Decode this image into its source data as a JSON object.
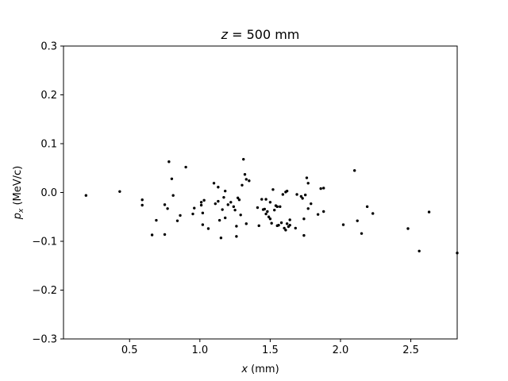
{
  "chart_data": {
    "type": "scatter",
    "title_var": "z",
    "title_rest": " = 500 mm",
    "xlabel_var": "x",
    "xlabel_rest": " (mm)",
    "ylabel_var": "p",
    "ylabel_sub": "x",
    "ylabel_rest": " (MeV/c)",
    "xlim": [
      0.03,
      2.83
    ],
    "ylim": [
      -0.3,
      0.3
    ],
    "xticks": [
      0.5,
      1.0,
      1.5,
      2.0,
      2.5
    ],
    "xtick_labels": [
      "0.5",
      "1.0",
      "1.5",
      "2.0",
      "2.5"
    ],
    "yticks": [
      -0.3,
      -0.2,
      -0.1,
      0.0,
      0.1,
      0.2,
      0.3
    ],
    "ytick_labels": [
      "−0.3",
      "−0.2",
      "−0.1",
      "0.0",
      "0.1",
      "0.2",
      "0.3"
    ],
    "grid": false,
    "marker_color": "#000000",
    "points": [
      [
        0.19,
        -0.006
      ],
      [
        0.43,
        0.002
      ],
      [
        0.59,
        -0.015
      ],
      [
        0.59,
        -0.026
      ],
      [
        0.66,
        -0.087
      ],
      [
        0.69,
        -0.057
      ],
      [
        0.75,
        -0.086
      ],
      [
        0.75,
        -0.025
      ],
      [
        0.77,
        -0.033
      ],
      [
        0.78,
        0.063
      ],
      [
        0.8,
        0.028
      ],
      [
        0.81,
        -0.006
      ],
      [
        0.84,
        -0.058
      ],
      [
        0.86,
        -0.047
      ],
      [
        0.9,
        0.052
      ],
      [
        0.95,
        -0.044
      ],
      [
        0.96,
        -0.032
      ],
      [
        1.01,
        -0.026
      ],
      [
        1.01,
        -0.02
      ],
      [
        1.02,
        -0.066
      ],
      [
        1.02,
        -0.042
      ],
      [
        1.03,
        -0.016
      ],
      [
        1.06,
        -0.074
      ],
      [
        1.1,
        0.019
      ],
      [
        1.11,
        -0.023
      ],
      [
        1.13,
        0.011
      ],
      [
        1.13,
        -0.018
      ],
      [
        1.14,
        -0.057
      ],
      [
        1.15,
        -0.093
      ],
      [
        1.16,
        -0.035
      ],
      [
        1.17,
        -0.01
      ],
      [
        1.18,
        0.003
      ],
      [
        1.18,
        -0.052
      ],
      [
        1.2,
        -0.025
      ],
      [
        1.22,
        -0.02
      ],
      [
        1.24,
        -0.029
      ],
      [
        1.25,
        -0.036
      ],
      [
        1.26,
        -0.069
      ],
      [
        1.26,
        -0.09
      ],
      [
        1.27,
        -0.011
      ],
      [
        1.28,
        -0.015
      ],
      [
        1.29,
        -0.046
      ],
      [
        1.3,
        0.015
      ],
      [
        1.31,
        0.068
      ],
      [
        1.32,
        0.037
      ],
      [
        1.33,
        0.027
      ],
      [
        1.33,
        -0.064
      ],
      [
        1.35,
        0.024
      ],
      [
        1.41,
        -0.031
      ],
      [
        1.42,
        -0.068
      ],
      [
        1.44,
        -0.014
      ],
      [
        1.45,
        -0.035
      ],
      [
        1.46,
        -0.034
      ],
      [
        1.47,
        -0.014
      ],
      [
        1.47,
        -0.044
      ],
      [
        1.48,
        -0.039
      ],
      [
        1.49,
        -0.05
      ],
      [
        1.5,
        -0.054
      ],
      [
        1.5,
        -0.02
      ],
      [
        1.51,
        -0.063
      ],
      [
        1.52,
        0.006
      ],
      [
        1.53,
        -0.036
      ],
      [
        1.54,
        -0.027
      ],
      [
        1.55,
        -0.068
      ],
      [
        1.55,
        -0.029
      ],
      [
        1.56,
        -0.067
      ],
      [
        1.57,
        -0.029
      ],
      [
        1.58,
        -0.062
      ],
      [
        1.59,
        -0.004
      ],
      [
        1.6,
        -0.073
      ],
      [
        1.61,
        -0.077
      ],
      [
        1.61,
        0.001
      ],
      [
        1.62,
        0.003
      ],
      [
        1.62,
        -0.064
      ],
      [
        1.63,
        -0.07
      ],
      [
        1.64,
        -0.056
      ],
      [
        1.64,
        -0.067
      ],
      [
        1.68,
        -0.073
      ],
      [
        1.69,
        -0.004
      ],
      [
        1.72,
        -0.008
      ],
      [
        1.73,
        -0.012
      ],
      [
        1.74,
        -0.088
      ],
      [
        1.74,
        -0.054
      ],
      [
        1.75,
        -0.005
      ],
      [
        1.76,
        0.03
      ],
      [
        1.77,
        0.019
      ],
      [
        1.77,
        -0.033
      ],
      [
        1.79,
        -0.023
      ],
      [
        1.84,
        -0.045
      ],
      [
        1.86,
        0.008
      ],
      [
        1.88,
        0.009
      ],
      [
        1.88,
        -0.039
      ],
      [
        2.02,
        -0.066
      ],
      [
        2.1,
        0.045
      ],
      [
        2.12,
        -0.058
      ],
      [
        2.15,
        -0.084
      ],
      [
        2.19,
        -0.029
      ],
      [
        2.23,
        -0.043
      ],
      [
        2.48,
        -0.074
      ],
      [
        2.56,
        -0.12
      ],
      [
        2.63,
        -0.04
      ],
      [
        2.83,
        -0.124
      ]
    ]
  }
}
